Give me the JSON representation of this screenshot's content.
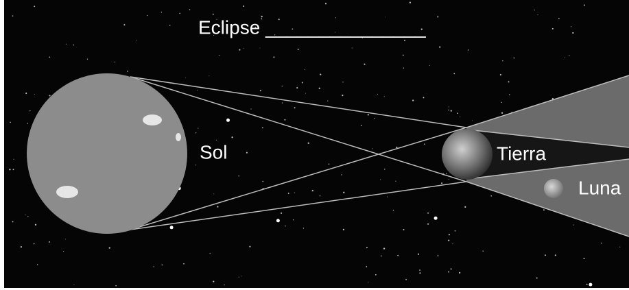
{
  "title": "Eclipse _______________",
  "labels": {
    "sun": "Sol",
    "earth": "Tierra",
    "moon": "Luna"
  }
}
